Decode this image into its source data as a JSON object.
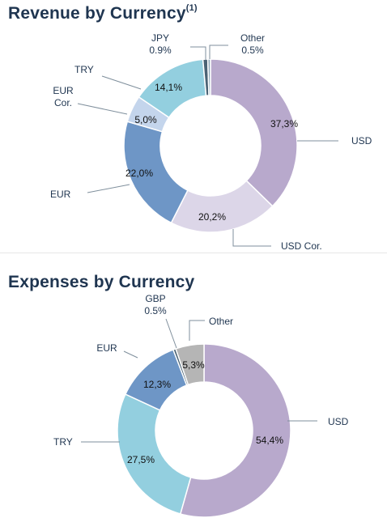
{
  "chart_data": [
    {
      "type": "pie",
      "title": "Revenue by Currency",
      "title_superscript": "(1)",
      "slices": [
        {
          "label": "USD",
          "value": 37.3,
          "display": "37,3%",
          "color": "#b8a9cc"
        },
        {
          "label": "USD Cor.",
          "value": 20.2,
          "display": "20,2%",
          "color": "#dcd6e8"
        },
        {
          "label": "EUR",
          "value": 22.0,
          "display": "22,0%",
          "color": "#6e96c6"
        },
        {
          "label": "EUR\nCor.",
          "value": 5.0,
          "display": "5,0%",
          "color": "#c4d5ec"
        },
        {
          "label": "TRY",
          "value": 14.1,
          "display": "14,1%",
          "color": "#93cfdf"
        },
        {
          "label": "JPY\n0.9%",
          "value": 0.9,
          "display": "",
          "color": "#4a6274"
        },
        {
          "label": "Other\n0.5%",
          "value": 0.5,
          "display": "",
          "color": "#8fa8b8"
        }
      ]
    },
    {
      "type": "pie",
      "title": "Expenses by Currency",
      "slices": [
        {
          "label": "USD",
          "value": 54.4,
          "display": "54,4%",
          "color": "#b8a9cc"
        },
        {
          "label": "TRY",
          "value": 27.5,
          "display": "27,5%",
          "color": "#93cfdf"
        },
        {
          "label": "EUR",
          "value": 12.3,
          "display": "12,3%",
          "color": "#6e96c6"
        },
        {
          "label": "GBP\n0.5%",
          "value": 0.5,
          "display": "",
          "color": "#4a6274"
        },
        {
          "label": "Other",
          "value": 5.3,
          "display": "5,3%",
          "color": "#b5b5b5"
        }
      ]
    }
  ]
}
